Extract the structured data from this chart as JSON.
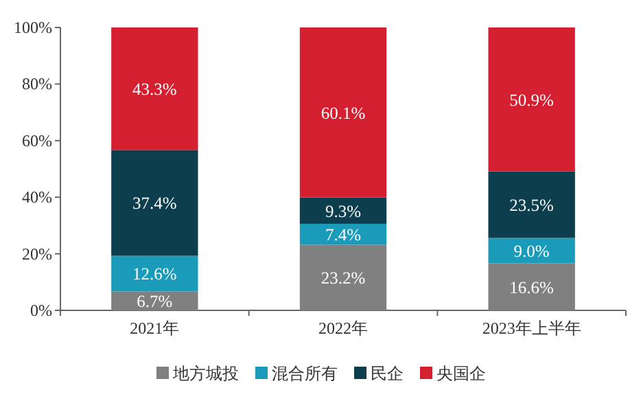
{
  "chart_data": {
    "type": "bar",
    "stacked": true,
    "categories": [
      "2021年",
      "2022年",
      "2023年上半年"
    ],
    "series": [
      {
        "name": "地方城投",
        "color": "#808080",
        "values": [
          6.7,
          23.2,
          16.6
        ],
        "value_labels": [
          "6.7%",
          "23.2%",
          "16.6%"
        ]
      },
      {
        "name": "混合所有",
        "color": "#1a9bb9",
        "values": [
          12.6,
          7.4,
          9.0
        ],
        "value_labels": [
          "12.6%",
          "7.4%",
          "9.0%"
        ]
      },
      {
        "name": "民企",
        "color": "#0c3e4e",
        "values": [
          37.4,
          9.3,
          23.5
        ],
        "value_labels": [
          "37.4%",
          "9.3%",
          "23.5%"
        ]
      },
      {
        "name": "央国企",
        "color": "#d41f30",
        "values": [
          43.3,
          60.1,
          50.9
        ],
        "value_labels": [
          "43.3%",
          "60.1%",
          "50.9%"
        ]
      }
    ],
    "ylim": [
      0,
      100
    ],
    "yticks": [
      {
        "value": 0,
        "label": "0%"
      },
      {
        "value": 20,
        "label": "20%"
      },
      {
        "value": 40,
        "label": "40%"
      },
      {
        "value": 60,
        "label": "60%"
      },
      {
        "value": 80,
        "label": "80%"
      },
      {
        "value": 100,
        "label": "100%"
      }
    ],
    "grid": false,
    "legend": "bottom"
  }
}
